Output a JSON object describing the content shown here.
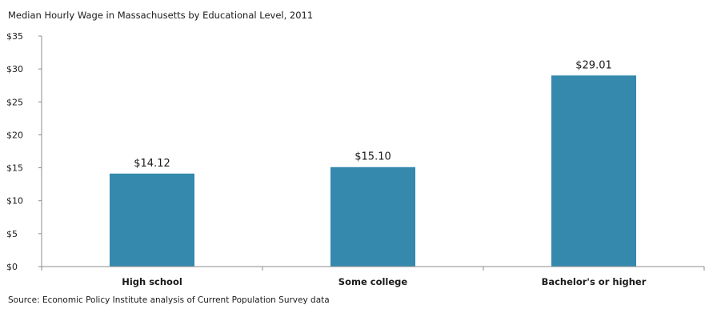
{
  "title": "Median Hourly Wage  in Massachusetts by Educational Level, 2011",
  "source": "Source: Economic Policy Institute analysis of Current Population Survey data",
  "colors": {
    "bar": "#3489ad",
    "axis": "#8c8c8c"
  },
  "chart_data": {
    "type": "bar",
    "title": "Median Hourly Wage  in Massachusetts by Educational Level, 2011",
    "xlabel": "",
    "ylabel": "",
    "categories": [
      "High school",
      "Some college",
      "Bachelor's or higher"
    ],
    "values": [
      14.12,
      15.1,
      29.01
    ],
    "data_labels": [
      "$14.12",
      "$15.10",
      "$29.01"
    ],
    "ylim": [
      0,
      35
    ],
    "yticks": [
      0,
      5,
      10,
      15,
      20,
      25,
      30,
      35
    ],
    "ytick_labels": [
      "$0",
      "$5",
      "$10",
      "$15",
      "$20",
      "$25",
      "$30",
      "$35"
    ],
    "grid": false,
    "legend": "none"
  }
}
